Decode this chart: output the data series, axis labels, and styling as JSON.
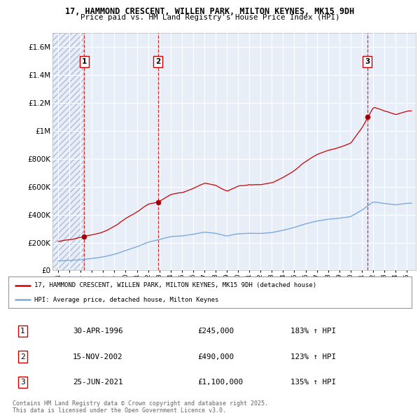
{
  "title": "17, HAMMOND CRESCENT, WILLEN PARK, MILTON KEYNES, MK15 9DH",
  "subtitle": "Price paid vs. HM Land Registry's House Price Index (HPI)",
  "legend_line1": "17, HAMMOND CRESCENT, WILLEN PARK, MILTON KEYNES, MK15 9DH (detached house)",
  "legend_line2": "HPI: Average price, detached house, Milton Keynes",
  "sale_points": [
    {
      "num": 1,
      "date": "30-APR-1996",
      "price": 245000,
      "year": 1996.33
    },
    {
      "num": 2,
      "date": "15-NOV-2002",
      "price": 490000,
      "year": 2002.87
    },
    {
      "num": 3,
      "date": "25-JUN-2021",
      "price": 1100000,
      "year": 2021.48
    }
  ],
  "footer_line1": "Contains HM Land Registry data © Crown copyright and database right 2025.",
  "footer_line2": "This data is licensed under the Open Government Licence v3.0.",
  "bg_color": "#e8eef8",
  "hatch_color": "#b0bcd8",
  "red_color": "#cc0000",
  "blue_color": "#7aabdc",
  "ylim": [
    0,
    1700000
  ],
  "xlim": [
    1993.5,
    2025.8
  ],
  "yticks": [
    0,
    200000,
    400000,
    600000,
    800000,
    1000000,
    1200000,
    1400000,
    1600000
  ],
  "ytick_labels": [
    "£0",
    "£200K",
    "£400K",
    "£600K",
    "£800K",
    "£1M",
    "£1.2M",
    "£1.4M",
    "£1.6M"
  ]
}
